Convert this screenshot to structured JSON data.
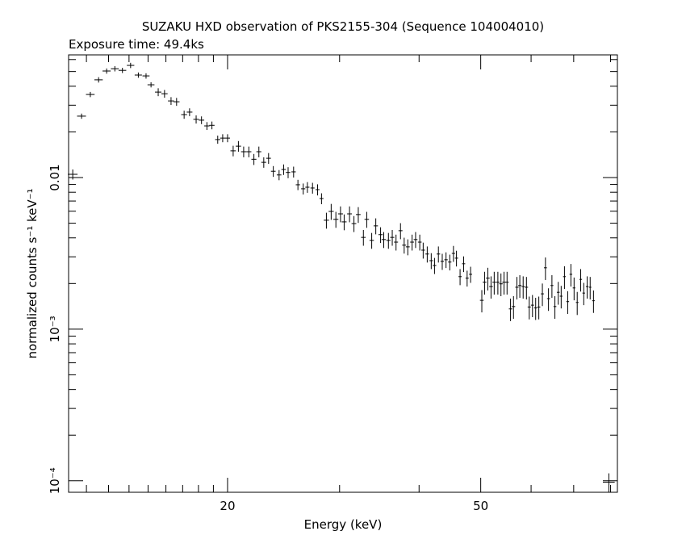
{
  "chart_data": {
    "type": "errorbar",
    "title": "SUZAKU HXD observation of PKS2155-304 (Sequence 104004010)",
    "subtitle": "Exposure time: 49.4ks",
    "xlabel": "Energy (keV)",
    "ylabel": "normalized counts s⁻¹ keV⁻¹",
    "xlog": true,
    "ylog": true,
    "color": "#000000",
    "xlim": [
      11.25,
      82
    ],
    "ylim": [
      8.4e-05,
      0.0644
    ],
    "xticks": [
      20,
      50
    ],
    "xminorticks": [
      12,
      13,
      14,
      15,
      16,
      17,
      18,
      19,
      30,
      40,
      60,
      70,
      80
    ],
    "yticks": [
      {
        "value": 0.0001,
        "label": "10⁻⁴"
      },
      {
        "value": 0.001,
        "label": "10⁻³"
      },
      0.01
    ],
    "yminorticks": [
      0.0002,
      0.0003,
      0.0004,
      0.0005,
      0.0006,
      0.0007,
      0.0008,
      0.0009,
      0.002,
      0.003,
      0.004,
      0.005,
      0.006,
      0.007,
      0.008,
      0.009,
      0.02,
      0.03,
      0.04,
      0.05,
      0.06
    ],
    "x": [
      11.42,
      11.79,
      12.17,
      12.54,
      12.91,
      13.3,
      13.67,
      14.08,
      14.48,
      14.89,
      15.16,
      15.56,
      15.92,
      16.3,
      16.63,
      17.09,
      17.43,
      17.85,
      18.2,
      18.56,
      18.9,
      19.3,
      19.65,
      20.0,
      20.41,
      20.8,
      21.2,
      21.6,
      22.0,
      22.4,
      22.8,
      23.2,
      23.6,
      24.1,
      24.5,
      24.9,
      25.4,
      25.8,
      26.3,
      26.7,
      27.2,
      27.7,
      28.1,
      28.6,
      29.1,
      29.6,
      30.1,
      30.5,
      31.1,
      31.6,
      32.1,
      32.7,
      33.1,
      33.7,
      34.2,
      34.8,
      35.2,
      35.8,
      36.3,
      36.8,
      37.4,
      37.9,
      38.4,
      39.0,
      39.5,
      40.1,
      40.6,
      41.2,
      41.8,
      42.3,
      42.9,
      43.5,
      44.1,
      44.7,
      45.3,
      45.8,
      46.4,
      47.0,
      47.6,
      48.2,
      50.2,
      50.7,
      51.3,
      51.9,
      52.5,
      53.2,
      53.8,
      54.4,
      55.0,
      55.7,
      56.3,
      57.0,
      57.6,
      58.3,
      59.0,
      59.6,
      60.3,
      61.0,
      61.7,
      62.5,
      63.2,
      63.9,
      64.7,
      65.4,
      66.2,
      66.9,
      67.7,
      68.5,
      69.3,
      70.1,
      70.9,
      71.8,
      72.6,
      73.5,
      74.3,
      75.2,
      79.5
    ],
    "xerr": [
      0.2,
      0.19,
      0.19,
      0.19,
      0.19,
      0.19,
      0.19,
      0.19,
      0.19,
      0.19,
      0.19,
      0.18,
      0.18,
      0.18,
      0.18,
      0.18,
      0.18,
      0.18,
      0.18,
      0.18,
      0.18,
      0.18,
      0.18,
      0.18,
      0.2,
      0.2,
      0.2,
      0.2,
      0.2,
      0.2,
      0.2,
      0.2,
      0.2,
      0.2,
      0.2,
      0.2,
      0.2,
      0.2,
      0.2,
      0.2,
      0.2,
      0.2,
      0.2,
      0.27,
      0.27,
      0.27,
      0.27,
      0.27,
      0.27,
      0.27,
      0.27,
      0.27,
      0.27,
      0.27,
      0.27,
      0.27,
      0.27,
      0.27,
      0.27,
      0.27,
      0.27,
      0.27,
      0.27,
      0.27,
      0.27,
      0.27,
      0.27,
      0.27,
      0.27,
      0.27,
      0.27,
      0.27,
      0.27,
      0.27,
      0.27,
      0.27,
      0.27,
      0.27,
      0.27,
      0.27,
      0.34,
      0.34,
      0.34,
      0.34,
      0.34,
      0.34,
      0.34,
      0.34,
      0.34,
      0.34,
      0.34,
      0.34,
      0.34,
      0.34,
      0.34,
      0.34,
      0.34,
      0.34,
      0.34,
      0.34,
      0.34,
      0.34,
      0.34,
      0.34,
      0.34,
      0.34,
      0.34,
      0.34,
      0.34,
      0.34,
      0.34,
      0.34,
      0.34,
      0.34,
      0.34,
      0.34,
      1.7
    ],
    "values": [
      0.0105,
      0.0254,
      0.0353,
      0.0441,
      0.0504,
      0.0522,
      0.0509,
      0.0549,
      0.0474,
      0.0468,
      0.0409,
      0.0366,
      0.0357,
      0.032,
      0.0316,
      0.026,
      0.027,
      0.0242,
      0.0239,
      0.0219,
      0.0221,
      0.0178,
      0.0182,
      0.0182,
      0.015,
      0.0161,
      0.0148,
      0.0148,
      0.0132,
      0.0148,
      0.0126,
      0.0134,
      0.011,
      0.0104,
      0.0113,
      0.0108,
      0.0109,
      0.00896,
      0.00843,
      0.00863,
      0.00853,
      0.00832,
      0.00727,
      0.00523,
      0.00598,
      0.0053,
      0.00576,
      0.0051,
      0.00576,
      0.00497,
      0.0057,
      0.00403,
      0.0053,
      0.00385,
      0.0048,
      0.0042,
      0.0039,
      0.00385,
      0.00403,
      0.00375,
      0.00446,
      0.00358,
      0.00349,
      0.00375,
      0.0039,
      0.00375,
      0.00332,
      0.00313,
      0.00283,
      0.00263,
      0.00313,
      0.0028,
      0.00287,
      0.00277,
      0.00316,
      0.00294,
      0.00222,
      0.0027,
      0.00217,
      0.0023,
      0.00155,
      0.00204,
      0.00217,
      0.00191,
      0.00204,
      0.00204,
      0.00199,
      0.00204,
      0.00204,
      0.00136,
      0.00141,
      0.00189,
      0.00194,
      0.00191,
      0.00189,
      0.0014,
      0.00144,
      0.00138,
      0.0014,
      0.00171,
      0.00254,
      0.00159,
      0.00194,
      0.00141,
      0.00175,
      0.00165,
      0.00222,
      0.00152,
      0.0023,
      0.00187,
      0.0015,
      0.00213,
      0.00173,
      0.00191,
      0.00189,
      0.00154,
      9.8e-05
    ],
    "yerr": [
      0.0008,
      0.001,
      0.0014,
      0.0018,
      0.002,
      0.0021,
      0.002,
      0.0022,
      0.0019,
      0.0019,
      0.0016,
      0.0022,
      0.0021,
      0.0019,
      0.0019,
      0.0016,
      0.0016,
      0.0015,
      0.0014,
      0.0013,
      0.0013,
      0.0011,
      0.0011,
      0.0011,
      0.0012,
      0.0013,
      0.0012,
      0.0012,
      0.0011,
      0.0012,
      0.001,
      0.0011,
      0.0009,
      0.0008,
      0.0009,
      0.0009,
      0.0009,
      0.0007,
      0.0007,
      0.0007,
      0.0007,
      0.0007,
      0.0006,
      0.00063,
      0.00072,
      0.00064,
      0.00069,
      0.00061,
      0.00069,
      0.0006,
      0.00068,
      0.00048,
      0.00064,
      0.00046,
      0.00058,
      0.0005,
      0.00047,
      0.00046,
      0.00048,
      0.00045,
      0.00054,
      0.00043,
      0.00042,
      0.00045,
      0.00047,
      0.00045,
      0.0004,
      0.00038,
      0.00034,
      0.00032,
      0.00038,
      0.00034,
      0.00034,
      0.00033,
      0.00038,
      0.00035,
      0.00027,
      0.00032,
      0.00026,
      0.00028,
      0.00026,
      0.00035,
      0.00037,
      0.00032,
      0.00035,
      0.00035,
      0.00034,
      0.00035,
      0.00035,
      0.00023,
      0.00024,
      0.00032,
      0.00033,
      0.00032,
      0.00032,
      0.00024,
      0.00024,
      0.00023,
      0.00024,
      0.00029,
      0.00043,
      0.00027,
      0.00033,
      0.00024,
      0.0003,
      0.00028,
      0.00038,
      0.00026,
      0.00039,
      0.00032,
      0.00026,
      0.00036,
      0.00029,
      0.00032,
      0.00032,
      0.00026,
      1.4e-05
    ]
  }
}
